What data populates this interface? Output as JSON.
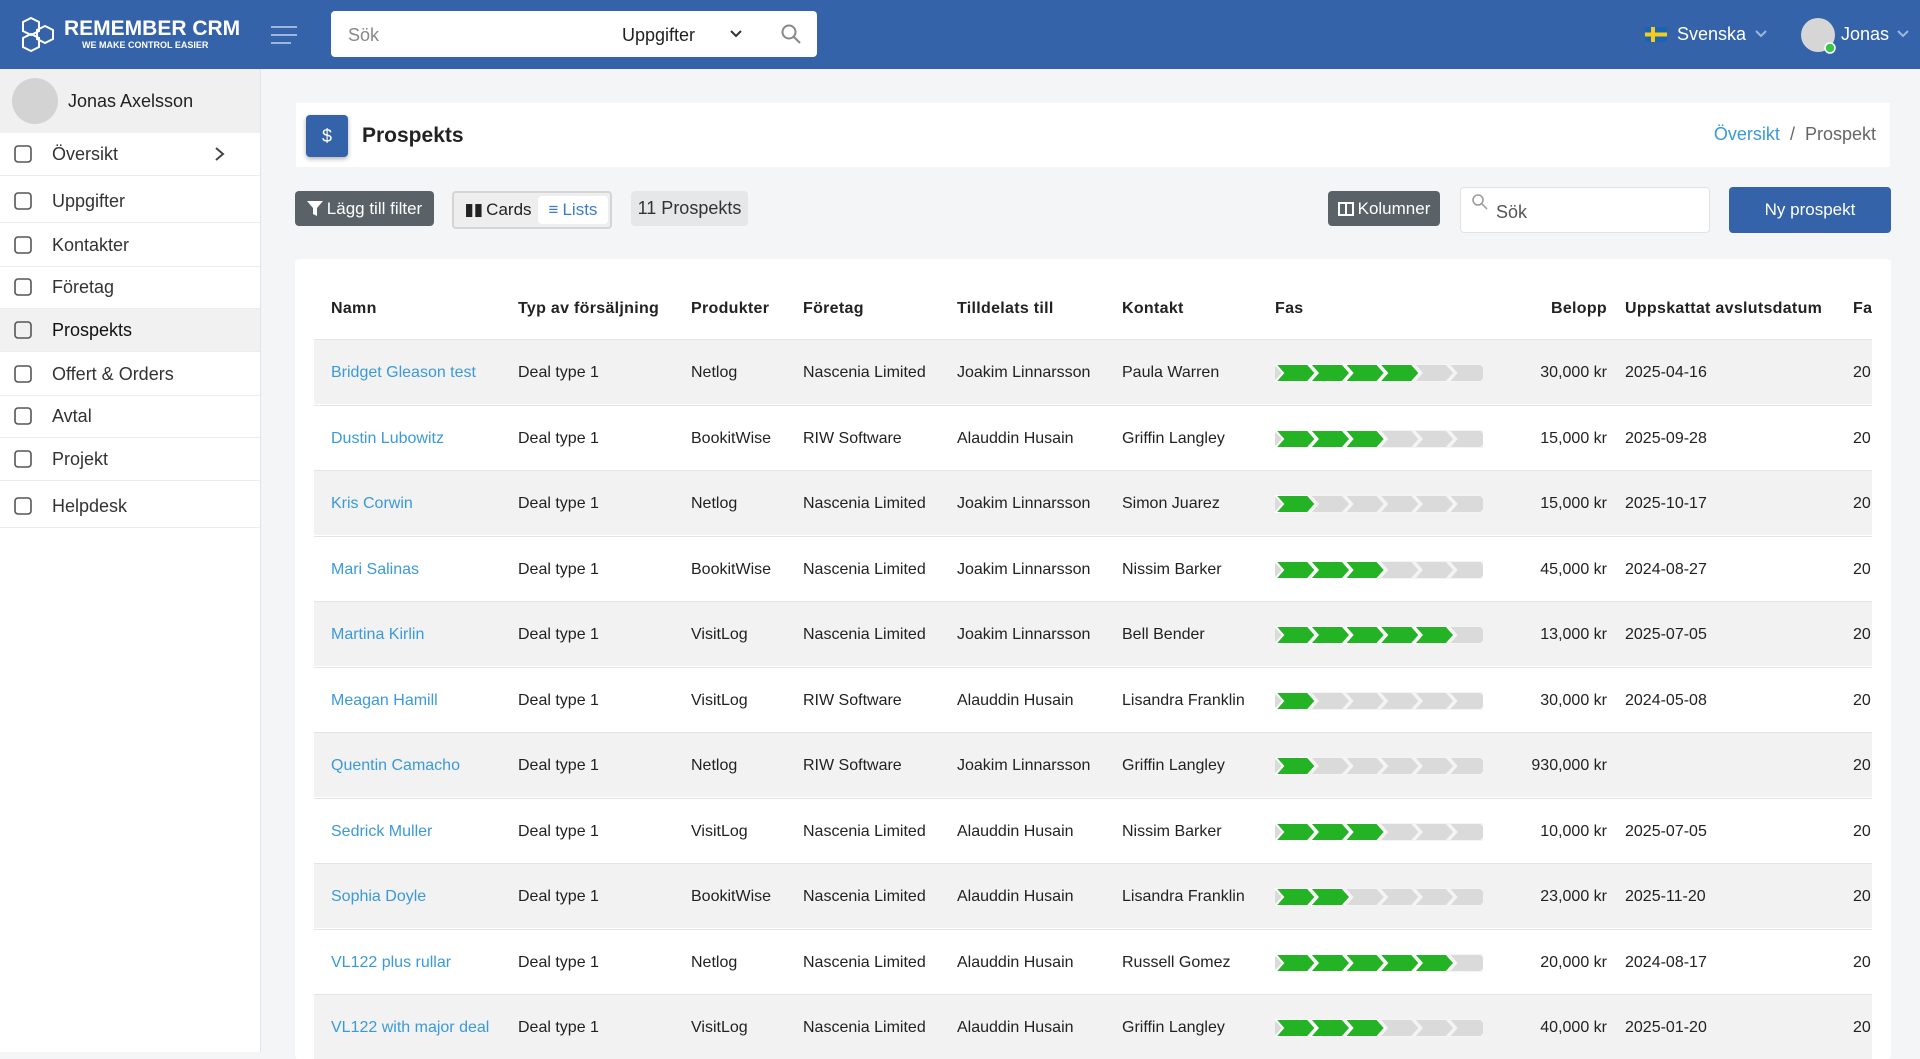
{
  "header": {
    "brand": "REMEMBER CRM",
    "tagline": "WE MAKE CONTROL EASIER",
    "search_placeholder": "Sök",
    "search_scope": "Uppgifter",
    "language": "Svenska",
    "user": "Jonas"
  },
  "sidebar": {
    "user": "Jonas Axelsson",
    "items": [
      "Översikt",
      "Uppgifter",
      "Kontakter",
      "Företag",
      "Prospekts",
      "Offert & Orders",
      "Avtal",
      "Projekt",
      "Helpdesk"
    ]
  },
  "page": {
    "title": "Prospekts",
    "breadcrumb": [
      "Översikt",
      "Prospekt"
    ]
  },
  "toolbar": {
    "filter": "Lägg till filter",
    "cards": "Cards",
    "lists": "Lists",
    "count": "11 Prospekts",
    "columns": "Kolumner",
    "search_placeholder": "Sök",
    "new": "Ny prospekt"
  },
  "table": {
    "headers": [
      "Namn",
      "Typ av försäljning",
      "Produkter",
      "Företag",
      "Tilldelats till",
      "Kontakt",
      "Fas",
      "Belopp",
      "Uppskattat avslutsdatum",
      "Fa"
    ],
    "fas_total": 6,
    "rows": [
      {
        "name": "Bridget Gleason test",
        "type": "Deal type 1",
        "product": "Netlog",
        "company": "Nascenia Limited",
        "assigned": "Joakim Linnarsson",
        "contact": "Paula Warren",
        "fas": 4,
        "amount": "30,000 kr",
        "date": "2025-04-16",
        "extra": "20"
      },
      {
        "name": "Dustin Lubowitz",
        "type": "Deal type 1",
        "product": "BookitWise",
        "company": "RIW Software",
        "assigned": "Alauddin Husain",
        "contact": "Griffin Langley",
        "fas": 3,
        "amount": "15,000 kr",
        "date": "2025-09-28",
        "extra": "20"
      },
      {
        "name": "Kris Corwin",
        "type": "Deal type 1",
        "product": "Netlog",
        "company": "Nascenia Limited",
        "assigned": "Joakim Linnarsson",
        "contact": "Simon Juarez",
        "fas": 1,
        "amount": "15,000 kr",
        "date": "2025-10-17",
        "extra": "20"
      },
      {
        "name": "Mari Salinas",
        "type": "Deal type 1",
        "product": "BookitWise",
        "company": "Nascenia Limited",
        "assigned": "Joakim Linnarsson",
        "contact": "Nissim Barker",
        "fas": 3,
        "amount": "45,000 kr",
        "date": "2024-08-27",
        "extra": "20"
      },
      {
        "name": "Martina Kirlin",
        "type": "Deal type 1",
        "product": "VisitLog",
        "company": "Nascenia Limited",
        "assigned": "Joakim Linnarsson",
        "contact": "Bell Bender",
        "fas": 5,
        "amount": "13,000 kr",
        "date": "2025-07-05",
        "extra": "20"
      },
      {
        "name": "Meagan Hamill",
        "type": "Deal type 1",
        "product": "VisitLog",
        "company": "RIW Software",
        "assigned": "Alauddin Husain",
        "contact": "Lisandra Franklin",
        "fas": 1,
        "amount": "30,000 kr",
        "date": "2024-05-08",
        "extra": "20"
      },
      {
        "name": "Quentin Camacho",
        "type": "Deal type 1",
        "product": "Netlog",
        "company": "RIW Software",
        "assigned": "Joakim Linnarsson",
        "contact": "Griffin Langley",
        "fas": 1,
        "amount": "930,000 kr",
        "date": null,
        "extra": "20"
      },
      {
        "name": "Sedrick Muller",
        "type": "Deal type 1",
        "product": "VisitLog",
        "company": "Nascenia Limited",
        "assigned": "Alauddin Husain",
        "contact": "Nissim Barker",
        "fas": 3,
        "amount": "10,000 kr",
        "date": "2025-07-05",
        "extra": "20"
      },
      {
        "name": "Sophia Doyle",
        "type": "Deal type 1",
        "product": "BookitWise",
        "company": "Nascenia Limited",
        "assigned": "Alauddin Husain",
        "contact": "Lisandra Franklin",
        "fas": 2,
        "amount": "23,000 kr",
        "date": "2025-11-20",
        "extra": "20"
      },
      {
        "name": "VL122 plus rullar",
        "type": "Deal type 1",
        "product": "Netlog",
        "company": "Nascenia Limited",
        "assigned": "Alauddin Husain",
        "contact": "Russell Gomez",
        "fas": 5,
        "amount": "20,000 kr",
        "date": "2024-08-17",
        "extra": "20"
      },
      {
        "name": "VL122 with major deal",
        "type": "Deal type 1",
        "product": "VisitLog",
        "company": "Nascenia Limited",
        "assigned": "Alauddin Husain",
        "contact": "Griffin Langley",
        "fas": 3,
        "amount": "40,000 kr",
        "date": "2025-01-20",
        "extra": "20"
      }
    ]
  }
}
